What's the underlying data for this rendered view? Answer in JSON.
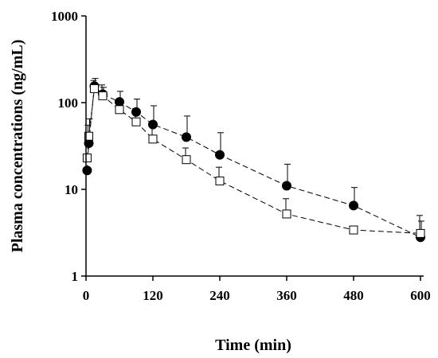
{
  "chart_data": {
    "type": "scatter",
    "title": "",
    "xlabel": "Time (min)",
    "ylabel": "Plasma concentrations (ng/mL)",
    "xlim": [
      0,
      600
    ],
    "ylim": [
      1,
      1000
    ],
    "yscale": "log",
    "xticks": [
      0,
      120,
      240,
      360,
      480,
      600
    ],
    "xtick_labels": [
      "0",
      "120",
      "240",
      "360",
      "480",
      "600"
    ],
    "yticks": [
      1,
      10,
      100,
      1000
    ],
    "ytick_labels": [
      "1",
      "10",
      "100",
      "1000"
    ],
    "grid": false,
    "series": [
      {
        "marker": "filled-circle",
        "line": "dashed",
        "color": "#000000",
        "x": [
          2,
          5,
          15,
          30,
          60,
          90,
          120,
          180,
          240,
          360,
          480,
          600
        ],
        "y": [
          16.5,
          34,
          155,
          125,
          102,
          78,
          56,
          40,
          25,
          11,
          6.5,
          2.8
        ],
        "err_upper": [
          null,
          65,
          190,
          150,
          135,
          110,
          92,
          70,
          45,
          19.5,
          10.5,
          4.3
        ]
      },
      {
        "marker": "open-square",
        "line": "dashed",
        "color": "#000000",
        "x": [
          2,
          5,
          15,
          30,
          60,
          90,
          120,
          180,
          240,
          360,
          480,
          600
        ],
        "y": [
          23,
          41,
          145,
          120,
          83,
          60,
          38,
          22,
          12.5,
          5.2,
          3.4,
          3.1
        ],
        "err_upper": [
          null,
          55,
          180,
          160,
          105,
          85,
          60,
          30,
          18,
          7.8,
          null,
          5
        ]
      }
    ]
  }
}
